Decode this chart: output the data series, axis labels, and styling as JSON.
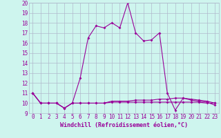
{
  "xlabel": "Windchill (Refroidissement éolien,°C)",
  "x": [
    0,
    1,
    2,
    3,
    4,
    5,
    6,
    7,
    8,
    9,
    10,
    11,
    12,
    13,
    14,
    15,
    16,
    17,
    18,
    19,
    20,
    21,
    22,
    23
  ],
  "y_main": [
    11,
    10,
    10,
    10,
    9.5,
    10,
    12.5,
    16.5,
    17.7,
    17.5,
    18,
    17.5,
    20,
    17,
    16.2,
    16.3,
    17,
    11,
    9.3,
    10.5,
    10.3,
    10.2,
    10.1,
    9.8
  ],
  "y_windchill": [
    11,
    10,
    10,
    10,
    9.5,
    10,
    10,
    10,
    10,
    10,
    10.1,
    10.1,
    10.1,
    10.1,
    10.1,
    10.1,
    10.1,
    10.1,
    10.1,
    10.1,
    10.1,
    10.1,
    10.0,
    10.0
  ],
  "y_temp": [
    11,
    10,
    10,
    10,
    9.5,
    10,
    10,
    10,
    10,
    10,
    10.2,
    10.2,
    10.2,
    10.3,
    10.3,
    10.3,
    10.4,
    10.4,
    10.5,
    10.5,
    10.4,
    10.3,
    10.2,
    10.0
  ],
  "ylim": [
    9,
    20
  ],
  "xlim": [
    -0.5,
    23.5
  ],
  "yticks": [
    9,
    10,
    11,
    12,
    13,
    14,
    15,
    16,
    17,
    18,
    19,
    20
  ],
  "xticks": [
    0,
    1,
    2,
    3,
    4,
    5,
    6,
    7,
    8,
    9,
    10,
    11,
    12,
    13,
    14,
    15,
    16,
    17,
    18,
    19,
    20,
    21,
    22,
    23
  ],
  "line_color": "#990099",
  "bg_color": "#cef5ee",
  "grid_color": "#b0b8cc",
  "marker": "D",
  "marker_size": 2.0,
  "line_width": 0.8,
  "tick_label_size": 5.5,
  "axis_label_size": 6.0
}
